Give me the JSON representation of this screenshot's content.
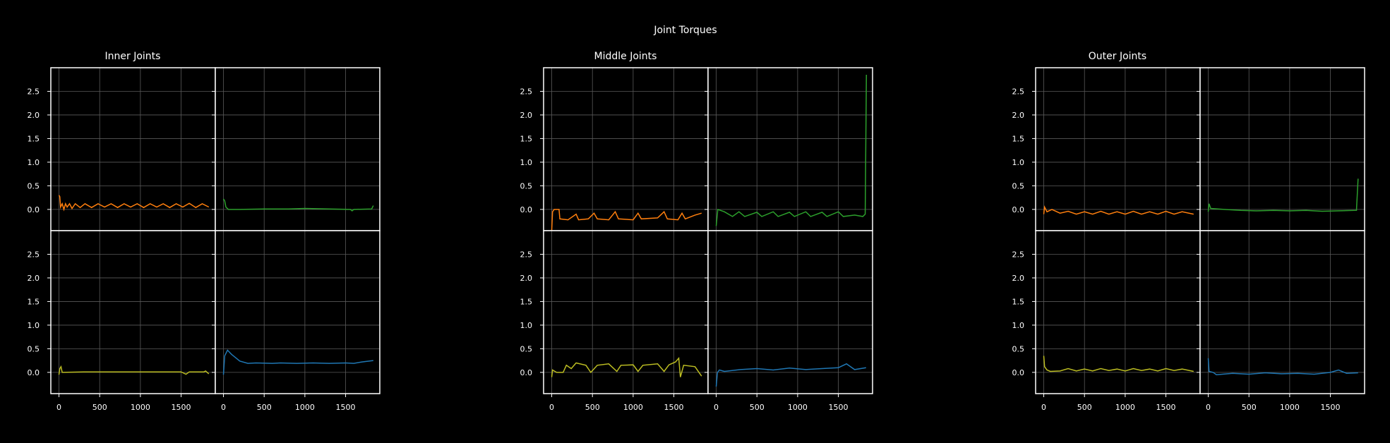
{
  "figure_title": "Joint Torques",
  "colors": {
    "background": "#000000",
    "frame": "#ffffff",
    "grid": "#5a5a5a",
    "text": "#ffffff",
    "series": [
      "#ff7f0e",
      "#2ca02c",
      "#bcbd22",
      "#1f77b4"
    ]
  },
  "chart_data": [
    {
      "type": "line",
      "title": "Inner Joints",
      "xlim": [
        -100,
        1920
      ],
      "ylim": [
        -0.45,
        3.0
      ],
      "x_ticks": [
        0,
        500,
        1000,
        1500
      ],
      "y_ticks": [
        0.0,
        0.5,
        1.0,
        1.5,
        2.0,
        2.5
      ],
      "grid": true,
      "panels": [
        {
          "color": "#ff7f0e",
          "points": [
            [
              0,
              0.3
            ],
            [
              10,
              0.27
            ],
            [
              20,
              0.05
            ],
            [
              40,
              0.12
            ],
            [
              60,
              0.0
            ],
            [
              80,
              0.12
            ],
            [
              100,
              0.05
            ],
            [
              130,
              0.12
            ],
            [
              160,
              0.02
            ],
            [
              200,
              0.12
            ],
            [
              260,
              0.04
            ],
            [
              320,
              0.12
            ],
            [
              400,
              0.04
            ],
            [
              480,
              0.12
            ],
            [
              560,
              0.05
            ],
            [
              640,
              0.12
            ],
            [
              720,
              0.04
            ],
            [
              800,
              0.12
            ],
            [
              880,
              0.05
            ],
            [
              960,
              0.12
            ],
            [
              1040,
              0.04
            ],
            [
              1120,
              0.12
            ],
            [
              1200,
              0.05
            ],
            [
              1280,
              0.12
            ],
            [
              1360,
              0.04
            ],
            [
              1440,
              0.12
            ],
            [
              1520,
              0.05
            ],
            [
              1600,
              0.13
            ],
            [
              1680,
              0.04
            ],
            [
              1760,
              0.12
            ],
            [
              1840,
              0.05
            ]
          ]
        },
        {
          "color": "#2ca02c",
          "points": [
            [
              0,
              0.22
            ],
            [
              15,
              0.18
            ],
            [
              30,
              0.05
            ],
            [
              60,
              0.0
            ],
            [
              200,
              0.0
            ],
            [
              500,
              0.01
            ],
            [
              800,
              0.01
            ],
            [
              1000,
              0.02
            ],
            [
              1300,
              0.01
            ],
            [
              1560,
              0.0
            ],
            [
              1580,
              -0.03
            ],
            [
              1600,
              0.0
            ],
            [
              1820,
              0.01
            ],
            [
              1840,
              0.08
            ]
          ]
        },
        {
          "color": "#bcbd22",
          "points": [
            [
              0,
              -0.05
            ],
            [
              10,
              0.08
            ],
            [
              25,
              0.12
            ],
            [
              40,
              0.0
            ],
            [
              300,
              0.01
            ],
            [
              600,
              0.01
            ],
            [
              900,
              0.01
            ],
            [
              1200,
              0.01
            ],
            [
              1500,
              0.01
            ],
            [
              1560,
              -0.04
            ],
            [
              1600,
              0.01
            ],
            [
              1780,
              0.01
            ],
            [
              1800,
              0.03
            ],
            [
              1840,
              -0.03
            ]
          ]
        },
        {
          "color": "#1f77b4",
          "points": [
            [
              0,
              -0.05
            ],
            [
              15,
              0.35
            ],
            [
              50,
              0.47
            ],
            [
              100,
              0.38
            ],
            [
              200,
              0.24
            ],
            [
              300,
              0.19
            ],
            [
              400,
              0.2
            ],
            [
              600,
              0.19
            ],
            [
              700,
              0.2
            ],
            [
              900,
              0.19
            ],
            [
              1100,
              0.2
            ],
            [
              1300,
              0.19
            ],
            [
              1500,
              0.2
            ],
            [
              1600,
              0.19
            ],
            [
              1700,
              0.22
            ],
            [
              1840,
              0.25
            ]
          ]
        }
      ]
    },
    {
      "type": "line",
      "title": "Middle Joints",
      "xlim": [
        -100,
        1920
      ],
      "ylim": [
        -0.45,
        3.0
      ],
      "x_ticks": [
        0,
        500,
        1000,
        1500
      ],
      "y_ticks": [
        0.0,
        0.5,
        1.0,
        1.5,
        2.0,
        2.5
      ],
      "grid": true,
      "panels": [
        {
          "color": "#ff7f0e",
          "points": [
            [
              0,
              -0.45
            ],
            [
              10,
              -0.05
            ],
            [
              30,
              0.0
            ],
            [
              90,
              0.0
            ],
            [
              100,
              -0.2
            ],
            [
              200,
              -0.22
            ],
            [
              300,
              -0.1
            ],
            [
              330,
              -0.22
            ],
            [
              450,
              -0.2
            ],
            [
              520,
              -0.08
            ],
            [
              560,
              -0.2
            ],
            [
              700,
              -0.22
            ],
            [
              780,
              -0.05
            ],
            [
              820,
              -0.2
            ],
            [
              1000,
              -0.22
            ],
            [
              1060,
              -0.08
            ],
            [
              1100,
              -0.2
            ],
            [
              1300,
              -0.18
            ],
            [
              1380,
              -0.05
            ],
            [
              1420,
              -0.2
            ],
            [
              1550,
              -0.22
            ],
            [
              1600,
              -0.08
            ],
            [
              1640,
              -0.2
            ],
            [
              1760,
              -0.12
            ],
            [
              1840,
              -0.08
            ]
          ]
        },
        {
          "color": "#2ca02c",
          "points": [
            [
              0,
              -0.35
            ],
            [
              20,
              0.0
            ],
            [
              100,
              -0.05
            ],
            [
              200,
              -0.15
            ],
            [
              280,
              -0.05
            ],
            [
              350,
              -0.15
            ],
            [
              500,
              -0.06
            ],
            [
              560,
              -0.15
            ],
            [
              700,
              -0.05
            ],
            [
              760,
              -0.15
            ],
            [
              900,
              -0.06
            ],
            [
              960,
              -0.15
            ],
            [
              1100,
              -0.05
            ],
            [
              1160,
              -0.15
            ],
            [
              1300,
              -0.06
            ],
            [
              1360,
              -0.15
            ],
            [
              1500,
              -0.05
            ],
            [
              1560,
              -0.15
            ],
            [
              1700,
              -0.12
            ],
            [
              1800,
              -0.15
            ],
            [
              1830,
              -0.1
            ],
            [
              1845,
              2.85
            ]
          ]
        },
        {
          "color": "#bcbd22",
          "points": [
            [
              0,
              -0.1
            ],
            [
              10,
              0.05
            ],
            [
              60,
              0.0
            ],
            [
              140,
              0.0
            ],
            [
              180,
              0.15
            ],
            [
              240,
              0.08
            ],
            [
              300,
              0.2
            ],
            [
              420,
              0.15
            ],
            [
              480,
              0.0
            ],
            [
              560,
              0.15
            ],
            [
              700,
              0.18
            ],
            [
              800,
              0.02
            ],
            [
              850,
              0.15
            ],
            [
              1000,
              0.16
            ],
            [
              1060,
              0.02
            ],
            [
              1120,
              0.15
            ],
            [
              1300,
              0.18
            ],
            [
              1380,
              0.02
            ],
            [
              1440,
              0.16
            ],
            [
              1520,
              0.22
            ],
            [
              1560,
              0.3
            ],
            [
              1580,
              -0.1
            ],
            [
              1620,
              0.15
            ],
            [
              1760,
              0.12
            ],
            [
              1840,
              -0.08
            ]
          ]
        },
        {
          "color": "#1f77b4",
          "points": [
            [
              0,
              -0.3
            ],
            [
              15,
              0.0
            ],
            [
              40,
              0.05
            ],
            [
              100,
              0.02
            ],
            [
              300,
              0.06
            ],
            [
              500,
              0.08
            ],
            [
              700,
              0.05
            ],
            [
              900,
              0.09
            ],
            [
              1100,
              0.06
            ],
            [
              1300,
              0.08
            ],
            [
              1500,
              0.1
            ],
            [
              1600,
              0.18
            ],
            [
              1700,
              0.06
            ],
            [
              1840,
              0.1
            ]
          ]
        }
      ]
    },
    {
      "type": "line",
      "title": "Outer Joints",
      "xlim": [
        -100,
        1920
      ],
      "ylim": [
        -0.45,
        3.0
      ],
      "x_ticks": [
        0,
        500,
        1000,
        1500
      ],
      "y_ticks": [
        0.0,
        0.5,
        1.0,
        1.5,
        2.0,
        2.5
      ],
      "grid": true,
      "panels": [
        {
          "color": "#ff7f0e",
          "points": [
            [
              0,
              -0.1
            ],
            [
              10,
              0.05
            ],
            [
              40,
              -0.05
            ],
            [
              100,
              0.0
            ],
            [
              200,
              -0.08
            ],
            [
              300,
              -0.04
            ],
            [
              400,
              -0.1
            ],
            [
              500,
              -0.05
            ],
            [
              600,
              -0.1
            ],
            [
              700,
              -0.04
            ],
            [
              800,
              -0.1
            ],
            [
              900,
              -0.05
            ],
            [
              1000,
              -0.1
            ],
            [
              1100,
              -0.04
            ],
            [
              1200,
              -0.1
            ],
            [
              1300,
              -0.05
            ],
            [
              1400,
              -0.1
            ],
            [
              1500,
              -0.04
            ],
            [
              1600,
              -0.1
            ],
            [
              1700,
              -0.05
            ],
            [
              1840,
              -0.1
            ]
          ]
        },
        {
          "color": "#2ca02c",
          "points": [
            [
              0,
              -0.05
            ],
            [
              10,
              0.12
            ],
            [
              30,
              0.02
            ],
            [
              200,
              0.0
            ],
            [
              400,
              -0.02
            ],
            [
              600,
              -0.03
            ],
            [
              800,
              -0.02
            ],
            [
              1000,
              -0.03
            ],
            [
              1200,
              -0.02
            ],
            [
              1400,
              -0.04
            ],
            [
              1600,
              -0.03
            ],
            [
              1820,
              -0.02
            ],
            [
              1840,
              0.65
            ]
          ]
        },
        {
          "color": "#bcbd22",
          "points": [
            [
              0,
              0.35
            ],
            [
              10,
              0.12
            ],
            [
              40,
              0.05
            ],
            [
              80,
              0.02
            ],
            [
              200,
              0.03
            ],
            [
              300,
              0.08
            ],
            [
              400,
              0.03
            ],
            [
              500,
              0.07
            ],
            [
              600,
              0.03
            ],
            [
              700,
              0.08
            ],
            [
              800,
              0.04
            ],
            [
              900,
              0.07
            ],
            [
              1000,
              0.03
            ],
            [
              1100,
              0.08
            ],
            [
              1200,
              0.04
            ],
            [
              1300,
              0.07
            ],
            [
              1400,
              0.03
            ],
            [
              1500,
              0.08
            ],
            [
              1600,
              0.04
            ],
            [
              1700,
              0.07
            ],
            [
              1840,
              0.02
            ]
          ]
        },
        {
          "color": "#1f77b4",
          "points": [
            [
              0,
              0.3
            ],
            [
              10,
              0.02
            ],
            [
              60,
              0.0
            ],
            [
              100,
              -0.05
            ],
            [
              300,
              -0.02
            ],
            [
              500,
              -0.04
            ],
            [
              700,
              -0.01
            ],
            [
              900,
              -0.03
            ],
            [
              1100,
              -0.02
            ],
            [
              1300,
              -0.04
            ],
            [
              1500,
              0.0
            ],
            [
              1600,
              0.05
            ],
            [
              1700,
              -0.02
            ],
            [
              1840,
              -0.01
            ]
          ]
        }
      ]
    }
  ]
}
